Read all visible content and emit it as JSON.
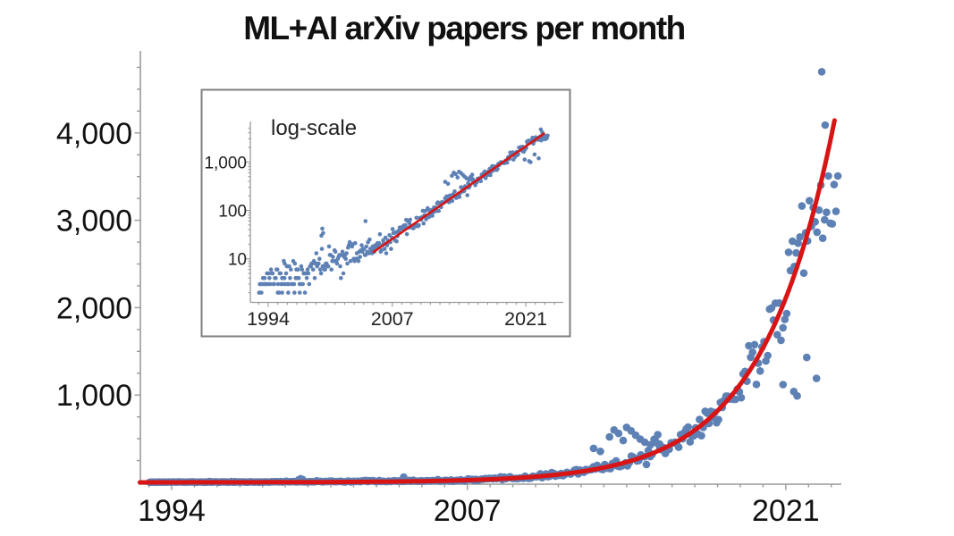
{
  "title": "ML+AI arXiv papers per month",
  "chart_data": {
    "type": "scatter",
    "title": "ML+AI arXiv papers per month",
    "xlabel": "",
    "ylabel": "",
    "x_axis": {
      "tick_labels": [
        "1994",
        "2007",
        "2021"
      ],
      "tick_years": [
        1994,
        2007,
        2021
      ],
      "minor_tick_every_years": 1,
      "range_years": [
        1992.55,
        2023.55
      ]
    },
    "y_axis": {
      "tick_labels": [
        "1,000",
        "2,000",
        "3,000",
        "4,000"
      ],
      "tick_values": [
        1000,
        2000,
        3000,
        4000
      ],
      "minor_tick_every": 250,
      "range": [
        0,
        4950
      ]
    },
    "series": [
      {
        "name": "monthly-paper-counts",
        "type": "points",
        "color": "#5e81b5",
        "months_range": [
          1993.04,
          2023.3
        ],
        "trend_papers_per_month_log10_anchors": [
          [
            1993.0,
            0.55
          ],
          [
            1994.5,
            0.58
          ],
          [
            1996.0,
            0.63
          ],
          [
            1997.5,
            0.7
          ],
          [
            1999.0,
            0.82
          ],
          [
            2000.5,
            0.95
          ],
          [
            2002.0,
            1.06
          ],
          [
            2003.5,
            1.15
          ],
          [
            2005.5,
            1.204
          ]
        ],
        "trend_papers_per_month_by_year": {
          "1994": 3.5,
          "1998": 5,
          "2002": 12,
          "2006": 29,
          "2010": 68,
          "2012": 128,
          "2014": 233,
          "2016": 437,
          "2018": 810,
          "2020": 1540,
          "2021": 2150,
          "2022": 3000,
          "2023": 3250
        },
        "plateau_after_year": 2021.65,
        "noise": {
          "seed": 11,
          "log10_sigma_early": 0.14,
          "log10_sigma_late": 0.042,
          "seasonal_amp_max": 0.035
        },
        "extra_points": [
          [
            1995.0,
            2
          ],
          [
            1995.45,
            2
          ],
          [
            1996.1,
            2
          ],
          [
            1996.75,
            2
          ],
          [
            1997.3,
            2
          ],
          [
            1997.85,
            2
          ],
          [
            1995.63,
            9
          ],
          [
            1995.72,
            8
          ],
          [
            1999.58,
            30
          ],
          [
            1999.67,
            42
          ],
          [
            1999.75,
            34
          ],
          [
            2004.2,
            60
          ],
          [
            2012.55,
            390
          ],
          [
            2012.85,
            355
          ],
          [
            2013.25,
            520
          ],
          [
            2013.45,
            600
          ],
          [
            2013.65,
            560
          ],
          [
            2013.85,
            480
          ],
          [
            2014.0,
            630
          ],
          [
            2014.2,
            590
          ],
          [
            2014.4,
            540
          ],
          [
            2014.6,
            495
          ],
          [
            2014.8,
            460
          ],
          [
            2015.05,
            430
          ],
          [
            2015.25,
            485
          ],
          [
            2015.45,
            440
          ],
          [
            2020.88,
            1120
          ],
          [
            2021.35,
            1040
          ],
          [
            2021.5,
            990
          ],
          [
            2021.92,
            1430
          ],
          [
            2022.35,
            1190
          ],
          [
            2022.58,
            4700
          ],
          [
            2022.73,
            4090
          ]
        ],
        "max_point": [
          2022.58,
          4700
        ]
      },
      {
        "name": "exponential-fit",
        "type": "curve",
        "color": "#d91414",
        "fit": {
          "form": "v0*exp(k*(t-t0))",
          "v0": 14.1,
          "t0": 2005.1,
          "k_per_year": 0.315,
          "doubling_time_years": 2.2,
          "range_years": [
            1992.6,
            2023.15
          ]
        }
      }
    ],
    "inset": {
      "label": "log-scale",
      "scale": "log",
      "x_tick_labels": [
        "1994",
        "2007",
        "2021"
      ],
      "x_tick_years": [
        1994,
        2007,
        2021
      ],
      "y_tick_labels": [
        "10",
        "100",
        "1,000"
      ],
      "y_tick_values": [
        10,
        100,
        1000
      ],
      "fit_line_years": [
        2005.05,
        2022.9
      ]
    }
  }
}
